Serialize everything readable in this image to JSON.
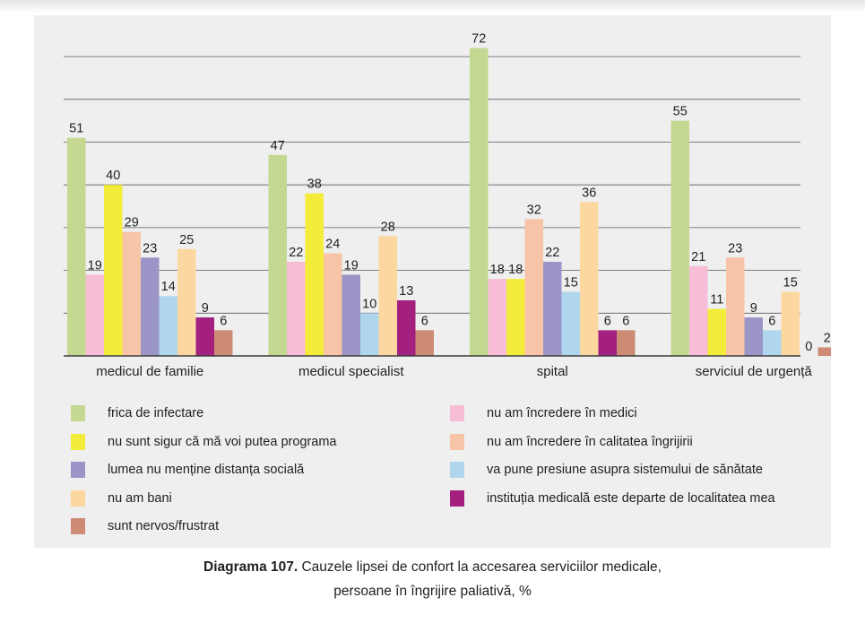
{
  "chart_data": {
    "type": "bar",
    "title": "",
    "xlabel": "",
    "ylabel": "",
    "ylim": [
      0,
      70
    ],
    "grid": true,
    "categories": [
      "medicul de familie",
      "medicul specialist",
      "spital",
      "serviciul de urgență"
    ],
    "series": [
      {
        "name": "frica de infectare",
        "color": "#c4d892",
        "values": [
          51,
          47,
          72,
          55
        ]
      },
      {
        "name": "nu am încredere în medici",
        "color": "#f7bcd6",
        "values": [
          19,
          22,
          18,
          21
        ]
      },
      {
        "name": "nu sunt sigur că mă voi putea programa",
        "color": "#f4ec3a",
        "values": [
          40,
          38,
          18,
          11
        ]
      },
      {
        "name": "nu am încredere în calitatea îngrijirii",
        "color": "#f8c4a8",
        "values": [
          29,
          24,
          32,
          23
        ]
      },
      {
        "name": "lumea nu menține distanța socială",
        "color": "#9a95c6",
        "values": [
          23,
          19,
          22,
          9
        ]
      },
      {
        "name": "va pune presiune asupra sistemului de sănătate",
        "color": "#b0d6ee",
        "values": [
          14,
          10,
          15,
          6
        ]
      },
      {
        "name": "nu am bani",
        "color": "#fdd7a0",
        "values": [
          25,
          28,
          36,
          15
        ]
      },
      {
        "name": "instituția medicală este departe de localitatea mea",
        "color": "#a3207f",
        "values": [
          9,
          13,
          6,
          0
        ]
      },
      {
        "name": "sunt nervos/frustrat",
        "color": "#cd8b76",
        "values": [
          6,
          6,
          6,
          2
        ]
      }
    ],
    "legend_placement": "bottom"
  },
  "legend_order": [
    0,
    1,
    2,
    3,
    4,
    5,
    6,
    7,
    8
  ],
  "caption": {
    "bold": "Diagrama 107.",
    "line1": " Cauzele lipsei de confort la accesarea serviciilor medicale,",
    "line2": "persoane în îngrijire paliativă, %"
  }
}
